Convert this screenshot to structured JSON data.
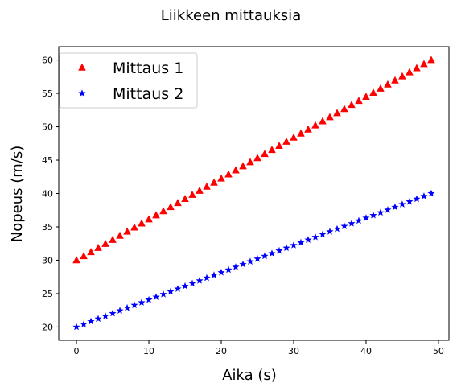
{
  "chart_data": {
    "type": "scatter",
    "title": "Liikkeen mittauksia",
    "xlabel": "Aika (s)",
    "ylabel": "Nopeus (m/s)",
    "xlim": [
      -2.45,
      51.45
    ],
    "ylim": [
      18,
      62
    ],
    "xticks": [
      0,
      10,
      20,
      30,
      40,
      50
    ],
    "yticks": [
      20,
      25,
      30,
      35,
      40,
      45,
      50,
      55,
      60
    ],
    "grid": false,
    "legend": "top-left",
    "x": [
      0,
      1,
      2,
      3,
      4,
      5,
      6,
      7,
      8,
      9,
      10,
      11,
      12,
      13,
      14,
      15,
      16,
      17,
      18,
      19,
      20,
      21,
      22,
      23,
      24,
      25,
      26,
      27,
      28,
      29,
      30,
      31,
      32,
      33,
      34,
      35,
      36,
      37,
      38,
      39,
      40,
      41,
      42,
      43,
      44,
      45,
      46,
      47,
      48,
      49
    ],
    "series": [
      {
        "name": "Mittaus 1",
        "marker": "triangle-up",
        "color": "#ff0000",
        "values": [
          30,
          30.61,
          31.22,
          31.84,
          32.45,
          33.06,
          33.67,
          34.29,
          34.9,
          35.51,
          36.12,
          36.73,
          37.35,
          37.96,
          38.57,
          39.18,
          39.8,
          40.41,
          41.02,
          41.63,
          42.24,
          42.86,
          43.47,
          44.08,
          44.69,
          45.31,
          45.92,
          46.53,
          47.14,
          47.76,
          48.37,
          48.98,
          49.59,
          50.2,
          50.82,
          51.43,
          52.04,
          52.65,
          53.27,
          53.88,
          54.49,
          55.1,
          55.71,
          56.33,
          56.94,
          57.55,
          58.16,
          58.78,
          59.39,
          60
        ]
      },
      {
        "name": "Mittaus 2",
        "marker": "star",
        "color": "#0000ff",
        "values": [
          20,
          20.41,
          20.82,
          21.22,
          21.63,
          22.04,
          22.45,
          22.86,
          23.27,
          23.67,
          24.08,
          24.49,
          24.9,
          25.31,
          25.71,
          26.12,
          26.53,
          26.94,
          27.35,
          27.76,
          28.16,
          28.57,
          28.98,
          29.39,
          29.8,
          30.2,
          30.61,
          31.02,
          31.43,
          31.84,
          32.24,
          32.65,
          33.06,
          33.47,
          33.88,
          34.29,
          34.69,
          35.1,
          35.51,
          35.92,
          36.33,
          36.73,
          37.14,
          37.55,
          37.96,
          38.37,
          38.78,
          39.18,
          39.59,
          40
        ]
      }
    ]
  }
}
